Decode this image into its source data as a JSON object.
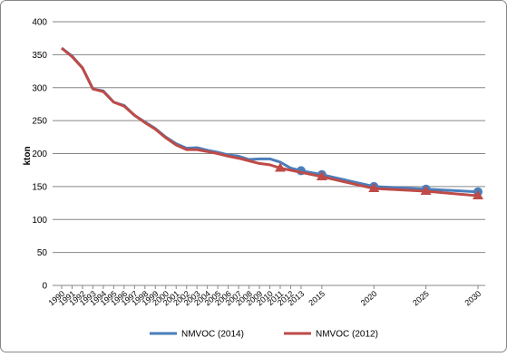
{
  "chart_data": {
    "type": "line",
    "y_label": "kton",
    "xlim": [
      1990,
      2030
    ],
    "xticks": [
      1990,
      1991,
      1992,
      1993,
      1994,
      1995,
      1996,
      1997,
      1998,
      1999,
      2000,
      2001,
      2002,
      2003,
      2004,
      2005,
      2006,
      2007,
      2008,
      2009,
      2010,
      2011,
      2012,
      2013,
      2015,
      2020,
      2025,
      2030
    ],
    "ylim": [
      0,
      400
    ],
    "yticks": [
      0,
      50,
      100,
      150,
      200,
      250,
      300,
      350,
      400
    ],
    "grid": true,
    "legend": "bottom",
    "series": [
      {
        "name": "NMVOC (2014)",
        "color": "#4a7ebb",
        "marker": "circle",
        "x": [
          1990,
          1991,
          1992,
          1993,
          1994,
          1995,
          1996,
          1997,
          1998,
          1999,
          2000,
          2001,
          2002,
          2003,
          2004,
          2005,
          2006,
          2007,
          2008,
          2009,
          2010,
          2011,
          2012,
          2013,
          2015,
          2020,
          2025,
          2030
        ],
        "values": [
          360,
          348,
          330,
          298,
          295,
          278,
          273,
          258,
          248,
          238,
          225,
          215,
          208,
          209,
          205,
          202,
          198,
          196,
          191,
          192,
          192,
          187,
          178,
          174,
          168,
          150,
          146,
          142
        ]
      },
      {
        "name": "NMVOC (2012)",
        "color": "#be4b48",
        "marker": "triangle",
        "x": [
          1990,
          1991,
          1992,
          1993,
          1994,
          1995,
          1996,
          1997,
          1998,
          1999,
          2000,
          2001,
          2002,
          2003,
          2004,
          2005,
          2006,
          2007,
          2008,
          2009,
          2010,
          2011,
          2015,
          2020,
          2025,
          2030
        ],
        "values": [
          360,
          347,
          330,
          298,
          294,
          278,
          272,
          258,
          247,
          237,
          224,
          213,
          206,
          206,
          203,
          200,
          196,
          193,
          189,
          185,
          183,
          178,
          165,
          147,
          143,
          136
        ]
      }
    ]
  }
}
